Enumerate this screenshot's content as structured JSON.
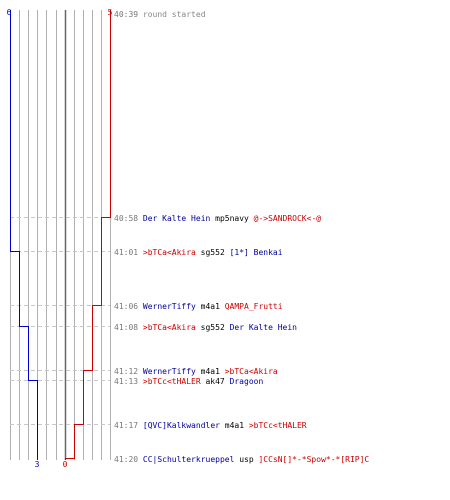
{
  "colors": {
    "blue_team": "#0000cc",
    "red_team": "#cc0000",
    "killer_blue": "#000099",
    "killer_red": "#cc0000",
    "weapon": "#000000",
    "time": "#777777",
    "grid": "#b0b0b0",
    "center_line": "#666666",
    "dashed": "#c8c8c8"
  },
  "counts": {
    "blue_start": "6",
    "red_start": "5",
    "blue_end": "3",
    "red_end": "0"
  },
  "events": [
    {
      "time": "40:39",
      "type": "info",
      "text": "round started"
    },
    {
      "time": "40:58",
      "type": "kill",
      "killer": "Der Kalte Hein",
      "killer_team": "blue",
      "weapon": "mp5navy",
      "victim": "@->SANDROCK<-@",
      "victim_team": "red"
    },
    {
      "time": "41:01",
      "type": "kill",
      "killer": ">bTCa<Akira",
      "killer_team": "red",
      "weapon": "sg552",
      "victim": "[1*] Benkai",
      "victim_team": "blue"
    },
    {
      "time": "41:06",
      "type": "kill",
      "killer": "WernerTiffy",
      "killer_team": "blue",
      "weapon": "m4a1",
      "victim": "QAMPA_Frutti",
      "victim_team": "red"
    },
    {
      "time": "41:08",
      "type": "kill",
      "killer": ">bTCa<Akira",
      "killer_team": "red",
      "weapon": "sg552",
      "victim": "Der Kalte Hein",
      "victim_team": "blue"
    },
    {
      "time": "41:12",
      "type": "kill",
      "killer": "WernerTiffy",
      "killer_team": "blue",
      "weapon": "m4a1",
      "victim": ">bTCa<Akira",
      "victim_team": "red"
    },
    {
      "time": "41:13",
      "type": "kill",
      "killer": ">bTCc<tHALER",
      "killer_team": "red",
      "weapon": "ak47",
      "victim": "Dragoon",
      "victim_team": "blue"
    },
    {
      "time": "41:17",
      "type": "kill",
      "killer": "[QVC]Kalkwandler",
      "killer_team": "blue",
      "weapon": "m4a1",
      "victim": ">bTCc<tHALER",
      "victim_team": "red"
    },
    {
      "time": "41:20",
      "type": "kill",
      "killer": "CC|Schulterkrueppel",
      "killer_team": "blue",
      "weapon": "usp",
      "victim": "]CCsN[]*-*Spow*-*[RIP]C",
      "victim_team": "red"
    }
  ]
}
